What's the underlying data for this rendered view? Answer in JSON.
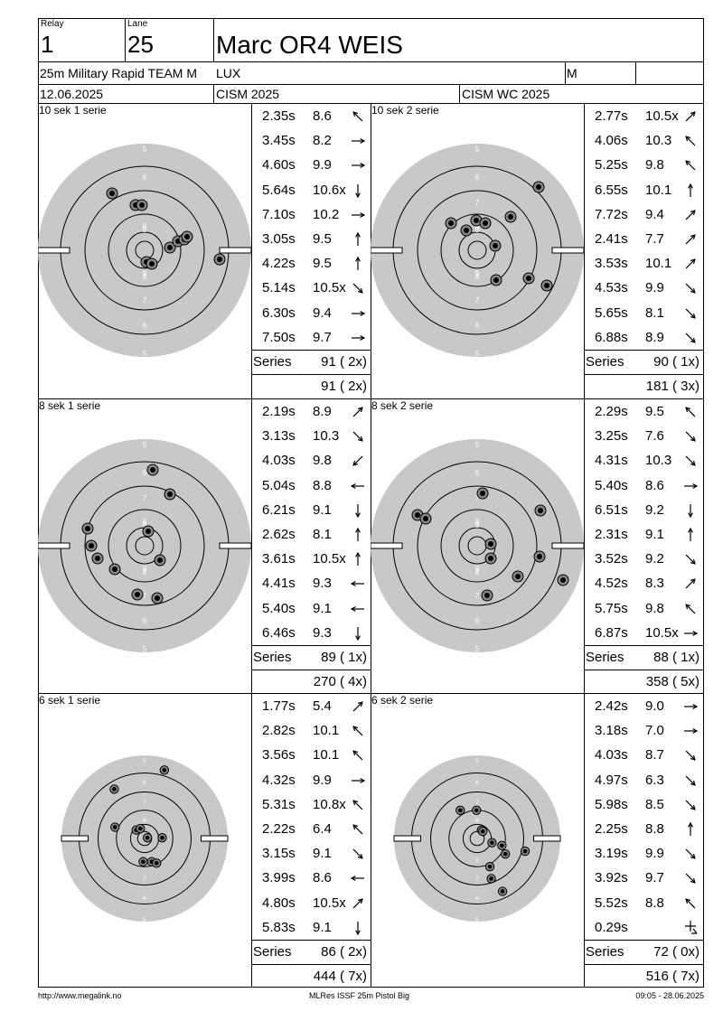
{
  "header": {
    "relay_label": "Relay",
    "relay_value": "1",
    "lane_label": "Lane",
    "lane_value": "25",
    "name": "Marc OR4 WEIS",
    "event": "25m Military Rapid TEAM M",
    "country": "LUX",
    "gender": "M",
    "date": "12.06.2025",
    "competition": "CISM 2025",
    "competition2": "CISM WC 2025"
  },
  "target_ring_labels": [
    "5",
    "6",
    "7",
    "8",
    "9"
  ],
  "series_label": "Series",
  "blocks": [
    {
      "title": "10 sek 1 serie",
      "shots": [
        {
          "time": "2.35s",
          "score": "8.6",
          "dir": "NW"
        },
        {
          "time": "3.45s",
          "score": "8.2",
          "dir": "E"
        },
        {
          "time": "4.60s",
          "score": "9.9",
          "dir": "E"
        },
        {
          "time": "5.64s",
          "score": "10.6x",
          "dir": "S"
        },
        {
          "time": "7.10s",
          "score": "10.2",
          "dir": "E"
        },
        {
          "time": "3.05s",
          "score": "9.5",
          "dir": "N"
        },
        {
          "time": "4.22s",
          "score": "9.5",
          "dir": "N"
        },
        {
          "time": "5.14s",
          "score": "10.5x",
          "dir": "SE"
        },
        {
          "time": "6.30s",
          "score": "9.4",
          "dir": "E"
        },
        {
          "time": "7.50s",
          "score": "9.7",
          "dir": "E"
        }
      ],
      "series_total": "91 ( 2x)",
      "cumulative": "91 ( 2x)"
    },
    {
      "title": "10 sek 2 serie",
      "shots": [
        {
          "time": "2.77s",
          "score": "10.5x",
          "dir": "NE"
        },
        {
          "time": "4.06s",
          "score": "10.3",
          "dir": "NW"
        },
        {
          "time": "5.25s",
          "score": "9.8",
          "dir": "NW"
        },
        {
          "time": "6.55s",
          "score": "10.1",
          "dir": "N"
        },
        {
          "time": "7.72s",
          "score": "9.4",
          "dir": "NE"
        },
        {
          "time": "2.41s",
          "score": "7.7",
          "dir": "NE"
        },
        {
          "time": "3.53s",
          "score": "10.1",
          "dir": "NE"
        },
        {
          "time": "4.53s",
          "score": "9.9",
          "dir": "SE"
        },
        {
          "time": "5.65s",
          "score": "8.1",
          "dir": "SE"
        },
        {
          "time": "6.88s",
          "score": "8.9",
          "dir": "SE"
        }
      ],
      "series_total": "90 ( 1x)",
      "cumulative": "181 ( 3x)"
    },
    {
      "title": "8 sek 1 serie",
      "shots": [
        {
          "time": "2.19s",
          "score": "8.9",
          "dir": "NE"
        },
        {
          "time": "3.13s",
          "score": "10.3",
          "dir": "SE"
        },
        {
          "time": "4.03s",
          "score": "9.8",
          "dir": "SW"
        },
        {
          "time": "5.04s",
          "score": "8.8",
          "dir": "W"
        },
        {
          "time": "6.21s",
          "score": "9.1",
          "dir": "S"
        },
        {
          "time": "2.62s",
          "score": "8.1",
          "dir": "N"
        },
        {
          "time": "3.61s",
          "score": "10.5x",
          "dir": "N"
        },
        {
          "time": "4.41s",
          "score": "9.3",
          "dir": "W"
        },
        {
          "time": "5.40s",
          "score": "9.1",
          "dir": "W"
        },
        {
          "time": "6.46s",
          "score": "9.3",
          "dir": "S"
        }
      ],
      "series_total": "89 ( 1x)",
      "cumulative": "270 ( 4x)"
    },
    {
      "title": "8 sek 2 serie",
      "shots": [
        {
          "time": "2.29s",
          "score": "9.5",
          "dir": "NW"
        },
        {
          "time": "3.25s",
          "score": "7.6",
          "dir": "SE"
        },
        {
          "time": "4.31s",
          "score": "10.3",
          "dir": "SE"
        },
        {
          "time": "5.40s",
          "score": "8.6",
          "dir": "E"
        },
        {
          "time": "6.51s",
          "score": "9.2",
          "dir": "S"
        },
        {
          "time": "2.31s",
          "score": "9.1",
          "dir": "N"
        },
        {
          "time": "3.52s",
          "score": "9.2",
          "dir": "SE"
        },
        {
          "time": "4.52s",
          "score": "8.3",
          "dir": "NE"
        },
        {
          "time": "5.75s",
          "score": "9.8",
          "dir": "NW"
        },
        {
          "time": "6.87s",
          "score": "10.5x",
          "dir": "E"
        }
      ],
      "series_total": "88 ( 1x)",
      "cumulative": "358 ( 5x)"
    },
    {
      "title": "6 sek 1 serie",
      "shots": [
        {
          "time": "1.77s",
          "score": "5.4",
          "dir": "NE"
        },
        {
          "time": "2.82s",
          "score": "10.1",
          "dir": "NW"
        },
        {
          "time": "3.56s",
          "score": "10.1",
          "dir": "NW"
        },
        {
          "time": "4.32s",
          "score": "9.9",
          "dir": "E"
        },
        {
          "time": "5.31s",
          "score": "10.8x",
          "dir": "NW"
        },
        {
          "time": "2.22s",
          "score": "6.4",
          "dir": "NW"
        },
        {
          "time": "3.15s",
          "score": "9.1",
          "dir": "SE"
        },
        {
          "time": "3.99s",
          "score": "8.6",
          "dir": "W"
        },
        {
          "time": "4.80s",
          "score": "10.5x",
          "dir": "NE"
        },
        {
          "time": "5.83s",
          "score": "9.1",
          "dir": "S"
        }
      ],
      "series_total": "86 ( 2x)",
      "cumulative": "444 ( 7x)"
    },
    {
      "title": "6 sek 2 serie",
      "shots": [
        {
          "time": "2.42s",
          "score": "9.0",
          "dir": "E"
        },
        {
          "time": "3.18s",
          "score": "7.0",
          "dir": "E"
        },
        {
          "time": "4.03s",
          "score": "8.7",
          "dir": "SE"
        },
        {
          "time": "4.97s",
          "score": "6.3",
          "dir": "SE"
        },
        {
          "time": "5.98s",
          "score": "8.5",
          "dir": "SE"
        },
        {
          "time": "2.25s",
          "score": "8.8",
          "dir": "N"
        },
        {
          "time": "3.19s",
          "score": "9.9",
          "dir": "SE"
        },
        {
          "time": "3.92s",
          "score": "9.7",
          "dir": "SE"
        },
        {
          "time": "5.52s",
          "score": "8.8",
          "dir": "NW"
        },
        {
          "time": "0.29s",
          "score": "",
          "dir": "cross"
        }
      ],
      "series_total": "72 ( 0x)",
      "cumulative": "516 ( 7x)"
    }
  ],
  "footer": {
    "left": "http://www.megalink.no",
    "center": "MLRes ISSF 25m Pistol Big",
    "right": "09:05 - 28.06.2025"
  }
}
